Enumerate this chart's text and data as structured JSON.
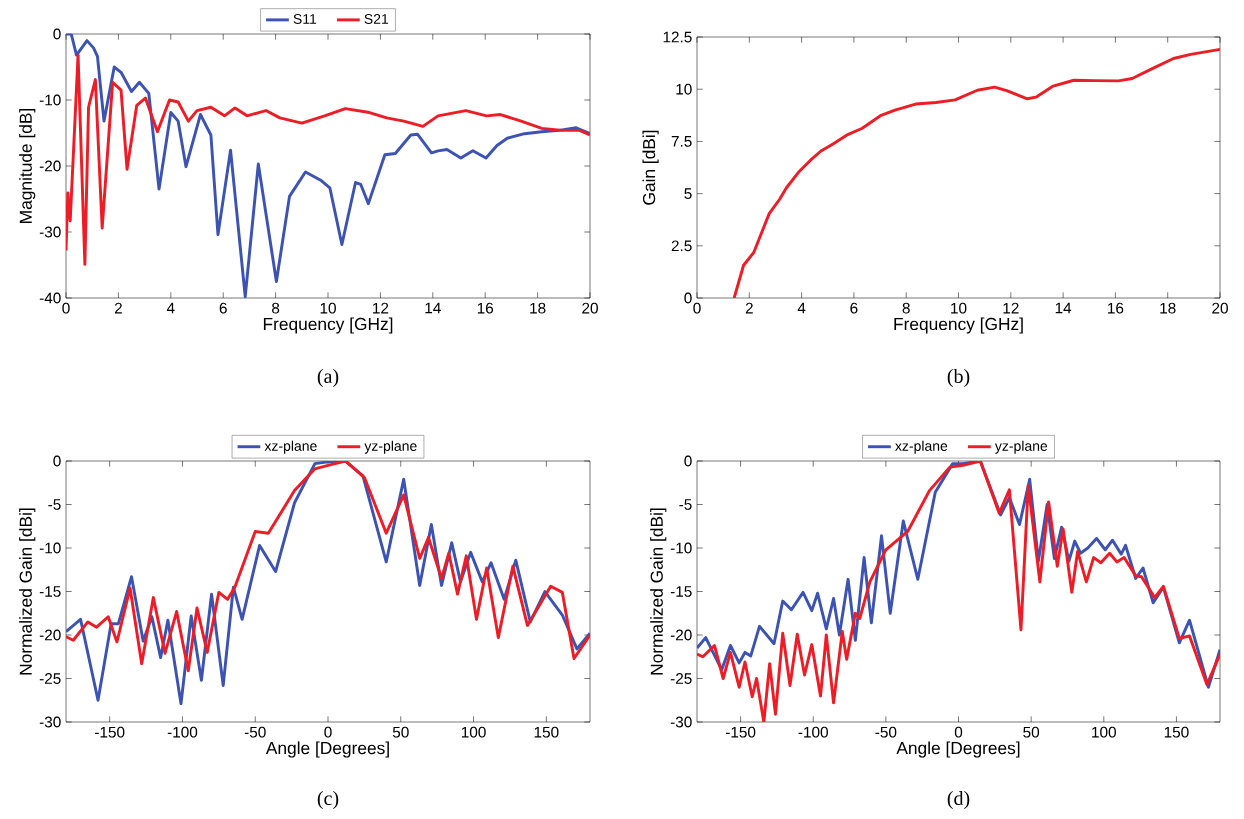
{
  "chart_data": [
    {
      "type": "line",
      "title": "(a)",
      "xlabel": "Frequency [GHz]",
      "ylabel": "Magnitude [dB]",
      "xlim": [
        0,
        20
      ],
      "ylim": [
        -40,
        0
      ],
      "xticks": [
        0,
        2,
        4,
        6,
        8,
        10,
        12,
        14,
        16,
        18,
        20
      ],
      "yticks": [
        -40,
        -30,
        -20,
        -10,
        0
      ],
      "legend": "top",
      "grid": false,
      "marker": "none",
      "line_style": "solid",
      "series": [
        {
          "name": "S11",
          "color": "#3c53b4",
          "x": [
            0,
            0.2,
            0.4,
            0.8,
            1.05,
            1.2,
            1.45,
            1.84,
            2.1,
            2.5,
            2.8,
            3.16,
            3.55,
            4.0,
            4.28,
            4.58,
            5.13,
            5.53,
            5.8,
            6.28,
            6.84,
            7.34,
            8.03,
            8.53,
            9.14,
            9.74,
            10.07,
            10.53,
            11.05,
            11.25,
            11.54,
            12.17,
            12.57,
            13.16,
            13.42,
            13.95,
            14.2,
            14.54,
            15.07,
            15.53,
            16.03,
            16.45,
            16.84,
            17.5,
            18.16,
            18.82,
            19.47,
            20
          ],
          "values": [
            0,
            0,
            -3.2,
            -1,
            -2.1,
            -3.4,
            -13.2,
            -5,
            -5.8,
            -8.7,
            -7.3,
            -9,
            -23.5,
            -11.9,
            -13.2,
            -20.1,
            -12.2,
            -15.3,
            -30.4,
            -17.6,
            -39.8,
            -19.7,
            -37.5,
            -24.6,
            -20.9,
            -22.2,
            -23.3,
            -31.9,
            -22.5,
            -22.8,
            -25.7,
            -18.3,
            -18.1,
            -15.3,
            -15.2,
            -18,
            -17.7,
            -17.5,
            -18.8,
            -17.7,
            -18.8,
            -16.9,
            -15.8,
            -15.1,
            -14.8,
            -14.6,
            -14.2,
            -15.1
          ]
        },
        {
          "name": "S21",
          "color": "#ee1c25",
          "x": [
            0,
            0.07,
            0.16,
            0.46,
            0.72,
            0.86,
            1.12,
            1.38,
            1.78,
            2.1,
            2.33,
            2.7,
            3.03,
            3.49,
            3.95,
            4.28,
            4.67,
            5.0,
            5.53,
            6.05,
            6.45,
            6.91,
            7.63,
            8.16,
            9.0,
            9.87,
            10.66,
            11.58,
            12.24,
            12.89,
            13.62,
            14.2,
            15.26,
            16.05,
            16.58,
            17.37,
            18.16,
            18.95,
            19.6,
            20
          ],
          "values": [
            -32.8,
            -24.1,
            -28.3,
            -3.2,
            -34.9,
            -11.1,
            -6.9,
            -29.4,
            -7.3,
            -8.5,
            -20.5,
            -10.8,
            -9.7,
            -14.8,
            -10,
            -10.3,
            -13.2,
            -11.6,
            -11.1,
            -12.4,
            -11.2,
            -12.4,
            -11.6,
            -12.7,
            -13.5,
            -12.4,
            -11.3,
            -11.9,
            -12.7,
            -13.2,
            -14.0,
            -12.4,
            -11.6,
            -12.4,
            -12.2,
            -13.2,
            -14.3,
            -14.6,
            -14.6,
            -15.3
          ]
        }
      ]
    },
    {
      "type": "line",
      "title": "(b)",
      "xlabel": "Frequency [GHz]",
      "ylabel": "Gain [dBi]",
      "xlim": [
        0,
        20
      ],
      "ylim": [
        0,
        12.5
      ],
      "xticks": [
        0,
        2,
        4,
        6,
        8,
        10,
        12,
        14,
        16,
        18,
        20
      ],
      "yticks": [
        0,
        2.5,
        5,
        7.5,
        10,
        12.5
      ],
      "grid": false,
      "marker": "none",
      "line_style": "solid",
      "series": [
        {
          "color": "#ee1c25",
          "x": [
            1.42,
            1.78,
            2.17,
            2.76,
            3.16,
            3.42,
            3.88,
            4.34,
            4.74,
            5.2,
            5.72,
            6.32,
            7.04,
            7.57,
            8.36,
            9.14,
            9.87,
            10.72,
            11.38,
            11.84,
            12.63,
            12.96,
            13.62,
            14.41,
            15.2,
            16.12,
            16.64,
            17.43,
            18.22,
            18.88,
            20
          ],
          "values": [
            0,
            1.57,
            2.18,
            4.04,
            4.73,
            5.28,
            6.02,
            6.6,
            7.04,
            7.38,
            7.8,
            8.13,
            8.75,
            9.0,
            9.29,
            9.36,
            9.49,
            9.95,
            10.1,
            9.93,
            9.54,
            9.62,
            10.15,
            10.43,
            10.41,
            10.4,
            10.51,
            11.0,
            11.47,
            11.67,
            11.91
          ]
        }
      ]
    },
    {
      "type": "line",
      "title": "(c)",
      "xlabel": "Angle [Degrees]",
      "ylabel": "Normalized Gain [dBi]",
      "xlim": [
        -180,
        180
      ],
      "ylim": [
        -30,
        0
      ],
      "xticks": [
        -150,
        -100,
        -50,
        0,
        50,
        100,
        150
      ],
      "yticks": [
        -30,
        -25,
        -20,
        -15,
        -10,
        -5,
        0
      ],
      "legend": "top",
      "grid": false,
      "marker": "none",
      "line_style": "solid",
      "series": [
        {
          "name": "xz-plane",
          "color": "#3c53b4",
          "x": [
            -180,
            -170,
            -158,
            -149,
            -144,
            -135,
            -127,
            -121,
            -115,
            -110,
            -101,
            -94,
            -87,
            -80,
            -72,
            -65,
            -59,
            -47,
            -36,
            -23,
            -9,
            0,
            12,
            24,
            40,
            52,
            63,
            71,
            78,
            85,
            91,
            98,
            106,
            112,
            121,
            129,
            139,
            149,
            161,
            171,
            180
          ],
          "values": [
            -19.6,
            -18.2,
            -27.5,
            -18.7,
            -18.7,
            -13.3,
            -20.7,
            -17.9,
            -22.6,
            -18.3,
            -27.9,
            -17.8,
            -25.2,
            -15.3,
            -25.8,
            -14.5,
            -18.2,
            -9.7,
            -12.7,
            -4.8,
            -0.3,
            -0.1,
            0,
            -1.7,
            -11.6,
            -2.1,
            -14.3,
            -7.3,
            -14.3,
            -9.4,
            -13.9,
            -10.5,
            -13.9,
            -11.7,
            -15.9,
            -11.4,
            -18.5,
            -15.0,
            -17.7,
            -21.6,
            -19.8
          ]
        },
        {
          "name": "yz-plane",
          "color": "#ee1c25",
          "x": [
            -180,
            -175,
            -165,
            -159,
            -151,
            -145,
            -136,
            -128,
            -120,
            -112,
            -104,
            -96,
            -90,
            -83,
            -75,
            -69,
            -64,
            -50,
            -41,
            -23,
            -9,
            0,
            12,
            25,
            40,
            52,
            63,
            69,
            78,
            83,
            89,
            95,
            102,
            109,
            117,
            127,
            137,
            153,
            161,
            169,
            180
          ],
          "values": [
            -20.2,
            -20.6,
            -18.5,
            -19.1,
            -17.9,
            -20.8,
            -14.6,
            -23.3,
            -15.7,
            -22.1,
            -17.3,
            -24.1,
            -16.9,
            -22.0,
            -15.1,
            -15.9,
            -14.5,
            -8.1,
            -8.3,
            -3.4,
            -0.9,
            -0.5,
            0,
            -1.9,
            -8.3,
            -3.9,
            -11.2,
            -8.8,
            -13.5,
            -10.6,
            -15.3,
            -10.9,
            -18.2,
            -12.3,
            -20.3,
            -12.1,
            -18.9,
            -14.4,
            -15.1,
            -22.7,
            -20.0
          ]
        }
      ]
    },
    {
      "type": "line",
      "title": "(d)",
      "xlabel": "Angle [Degrees]",
      "ylabel": "Normalized Gain [dBi]",
      "xlim": [
        -180,
        180
      ],
      "ylim": [
        -30,
        0
      ],
      "xticks": [
        -150,
        -100,
        -50,
        0,
        50,
        100,
        150
      ],
      "yticks": [
        -30,
        -25,
        -20,
        -15,
        -10,
        -5,
        0
      ],
      "legend": "top",
      "grid": false,
      "marker": "none",
      "line_style": "solid",
      "series": [
        {
          "name": "xz-plane",
          "color": "#3c53b4",
          "x": [
            -180,
            -174,
            -163,
            -157,
            -151,
            -147,
            -143,
            -137,
            -131,
            -127,
            -121,
            -115,
            -107,
            -101,
            -97,
            -91,
            -86,
            -82,
            -76,
            -71,
            -65,
            -60,
            -53,
            -47,
            -38,
            -28,
            -16,
            -4,
            3,
            15,
            29,
            35,
            42,
            49,
            55,
            61,
            66,
            71,
            76,
            80,
            84,
            89,
            95,
            101,
            106,
            112,
            115,
            122,
            127,
            134,
            141,
            152,
            159,
            172,
            180
          ],
          "values": [
            -21.5,
            -20.3,
            -24.0,
            -21.2,
            -23.2,
            -22.0,
            -22.4,
            -19.0,
            -20.2,
            -21.0,
            -16.1,
            -17.1,
            -15.1,
            -17.2,
            -15.2,
            -19.3,
            -15.8,
            -20.0,
            -13.6,
            -20.6,
            -11.1,
            -18.6,
            -8.6,
            -17.5,
            -6.9,
            -13.6,
            -3.6,
            -0.3,
            -0.3,
            0,
            -6.2,
            -4.2,
            -7.3,
            -2.1,
            -11.5,
            -5.0,
            -11.2,
            -7.6,
            -11.5,
            -9.2,
            -10.6,
            -10.0,
            -8.9,
            -10.2,
            -9.1,
            -10.7,
            -9.7,
            -13.5,
            -12.3,
            -16.3,
            -14.5,
            -20.9,
            -18.3,
            -26.0,
            -21.7
          ]
        },
        {
          "name": "yz-plane",
          "color": "#ee1c25",
          "x": [
            -180,
            -176,
            -168,
            -162,
            -157,
            -151,
            -147,
            -142,
            -139,
            -134,
            -130,
            -126,
            -121,
            -116,
            -111,
            -106,
            -101,
            -95,
            -91,
            -86,
            -80,
            -77,
            -71,
            -68,
            -61,
            -50,
            -35,
            -20,
            -6,
            3,
            15,
            28,
            35,
            43,
            48,
            56,
            62,
            68,
            72,
            78,
            82,
            88,
            93,
            98,
            104,
            109,
            114,
            122,
            126,
            135,
            141,
            152,
            159,
            171,
            180
          ],
          "values": [
            -22.2,
            -22.5,
            -21.2,
            -25.0,
            -22.0,
            -26.0,
            -23.1,
            -27.1,
            -25.0,
            -30,
            -23.3,
            -29.1,
            -19.8,
            -25.8,
            -19.9,
            -24.6,
            -21.1,
            -27.0,
            -20.0,
            -27.8,
            -19.6,
            -22.8,
            -17.5,
            -18.1,
            -13.9,
            -10.2,
            -8.1,
            -3.4,
            -0.7,
            -0.5,
            0,
            -6.0,
            -3.3,
            -19.4,
            -2.8,
            -13.9,
            -4.7,
            -12.1,
            -7.8,
            -15.1,
            -10.4,
            -13.9,
            -11.1,
            -11.7,
            -10.6,
            -11.6,
            -11.1,
            -13.2,
            -13.3,
            -15.7,
            -14.4,
            -20.4,
            -20.1,
            -25.7,
            -22.2
          ]
        }
      ]
    }
  ]
}
